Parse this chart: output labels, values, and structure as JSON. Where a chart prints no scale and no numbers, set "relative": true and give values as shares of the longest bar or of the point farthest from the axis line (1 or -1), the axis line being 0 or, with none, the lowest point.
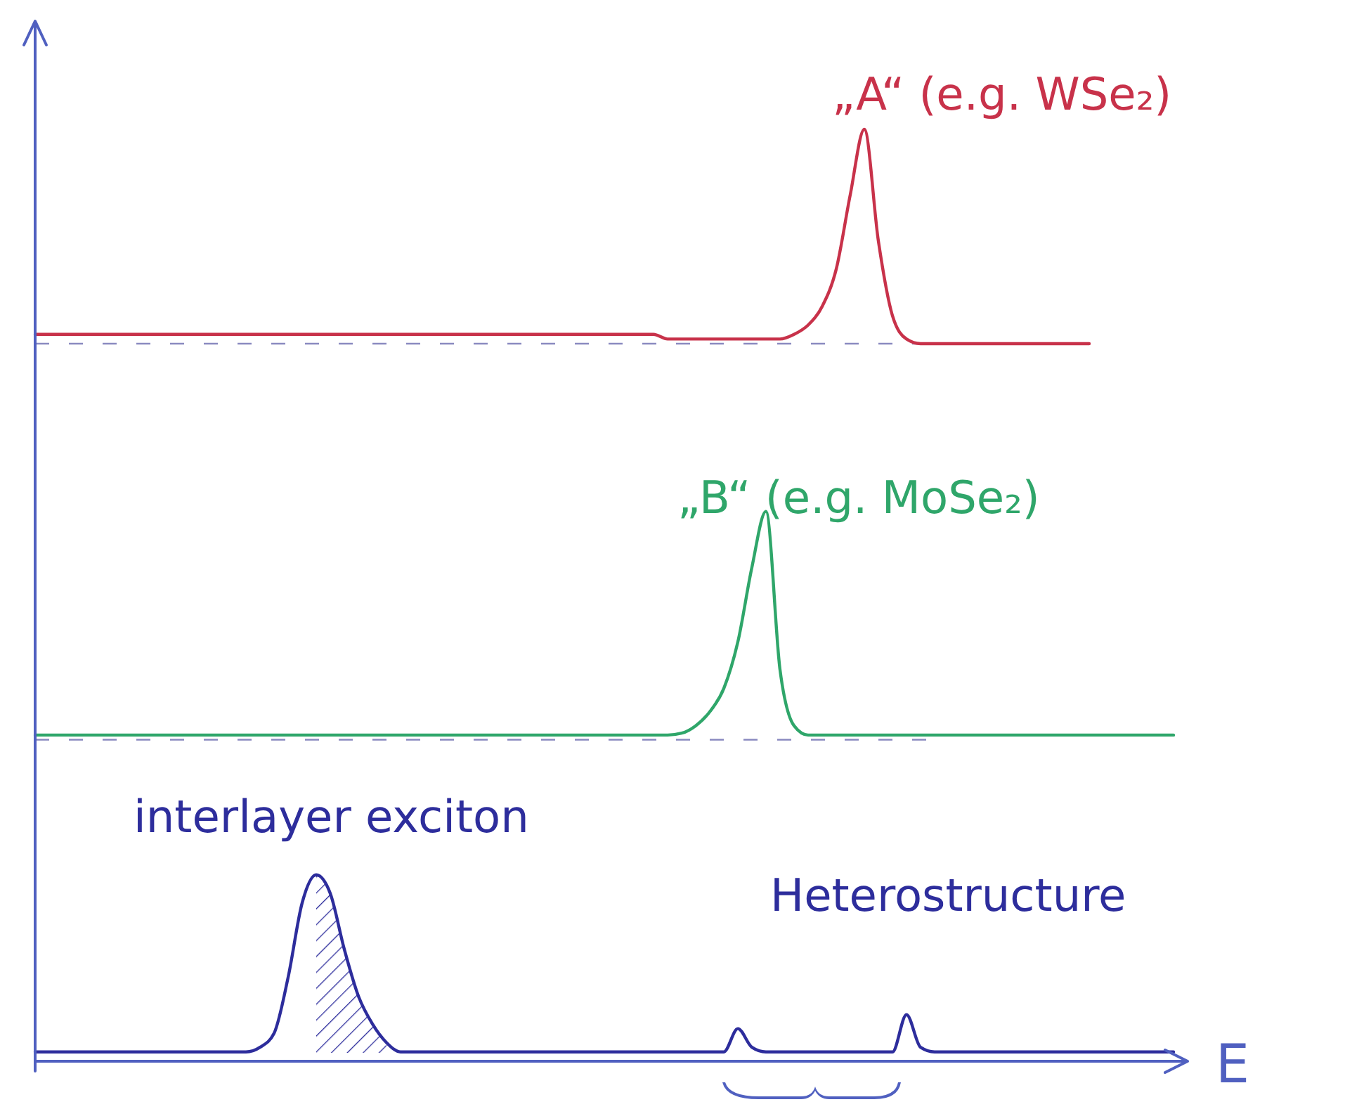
{
  "chart_data": {
    "type": "line",
    "relative": true,
    "xlabel": "E",
    "categories": [
      null,
      null,
      null,
      null,
      null,
      null,
      null,
      null,
      null,
      null,
      null,
      null,
      null,
      null,
      null,
      null,
      null,
      null,
      null,
      null,
      null,
      null,
      null,
      null,
      null,
      null,
      null,
      null,
      null,
      null,
      null,
      null,
      null,
      null,
      null,
      null,
      null,
      null,
      null,
      null,
      null,
      null,
      null,
      null,
      null,
      null,
      null,
      null,
      null,
      null,
      null,
      null,
      null,
      null,
      null,
      null,
      null,
      null,
      null,
      null,
      null,
      null,
      null,
      null,
      null,
      null,
      null,
      null,
      null,
      null,
      null,
      null,
      null,
      null,
      null,
      null,
      null,
      null,
      null,
      null,
      null,
      null,
      null
    ],
    "series": [
      {
        "color": "#c8324a",
        "values": [
          0.78,
          0.78,
          0.78,
          0.78,
          0.78,
          0.78,
          0.78,
          0.78,
          0.78,
          0.78,
          0.78,
          0.78,
          0.78,
          0.78,
          0.78,
          0.78,
          0.78,
          0.78,
          0.78,
          0.78,
          0.78,
          0.78,
          0.78,
          0.78,
          0.78,
          0.78,
          0.78,
          0.78,
          0.78,
          0.78,
          0.78,
          0.78,
          0.78,
          0.78,
          0.78,
          0.78,
          0.78,
          0.78,
          0.78,
          0.78,
          0.78,
          0.78,
          0.78,
          0.78,
          0.78,
          0.775,
          0.775,
          0.775,
          0.775,
          0.775,
          0.775,
          0.775,
          0.775,
          0.775,
          0.78,
          0.79,
          0.81,
          0.85,
          0.93,
          1,
          0.88,
          0.8,
          0.775,
          0.77,
          0.77,
          0.77,
          0.77,
          0.77,
          0.77,
          0.77,
          0.77,
          0.77,
          0.77,
          0.77,
          0.77,
          0.77,
          null,
          null,
          null,
          null,
          null,
          null,
          null
        ]
      },
      {
        "color": "#2fa66a",
        "values": [
          0.35,
          0.35,
          0.35,
          0.35,
          0.35,
          0.35,
          0.35,
          0.35,
          0.35,
          0.35,
          0.35,
          0.35,
          0.35,
          0.35,
          0.35,
          0.35,
          0.35,
          0.35,
          0.35,
          0.35,
          0.35,
          0.35,
          0.35,
          0.35,
          0.35,
          0.35,
          0.35,
          0.35,
          0.35,
          0.35,
          0.35,
          0.35,
          0.35,
          0.35,
          0.35,
          0.35,
          0.35,
          0.35,
          0.35,
          0.35,
          0.35,
          0.35,
          0.35,
          0.35,
          0.35,
          0.35,
          0.352,
          0.36,
          0.375,
          0.4,
          0.45,
          0.53,
          0.59,
          0.42,
          0.36,
          0.35,
          0.35,
          0.35,
          0.35,
          0.35,
          0.35,
          0.35,
          0.35,
          0.35,
          0.35,
          0.35,
          0.35,
          0.35,
          0.35,
          0.35,
          0.35,
          0.35,
          0.35,
          0.35,
          0.35,
          0.35,
          0.35,
          0.35,
          0.35,
          0.35,
          0.35,
          0.35,
          null
        ]
      },
      {
        "color": "#2d2d9c",
        "values": [
          0.01,
          0.01,
          0.01,
          0.01,
          0.01,
          0.01,
          0.01,
          0.01,
          0.01,
          0.01,
          0.01,
          0.01,
          0.01,
          0.01,
          0.01,
          0.01,
          0.015,
          0.03,
          0.09,
          0.17,
          0.2,
          0.18,
          0.12,
          0.07,
          0.04,
          0.02,
          0.01,
          0.01,
          0.01,
          0.01,
          0.01,
          0.01,
          0.01,
          0.01,
          0.01,
          0.01,
          0.01,
          0.01,
          0.01,
          0.01,
          0.01,
          0.01,
          0.01,
          0.01,
          0.01,
          0.01,
          0.01,
          0.01,
          0.01,
          0.01,
          0.035,
          0.015,
          0.01,
          0.01,
          0.01,
          0.01,
          0.01,
          0.01,
          0.01,
          0.01,
          0.01,
          0.01,
          0.05,
          0.015,
          0.01,
          0.01,
          0.01,
          0.01,
          0.01,
          0.01,
          0.01,
          0.01,
          0.01,
          0.01,
          0.01,
          0.01,
          0.01,
          0.01,
          0.01,
          0.01,
          0.01,
          0.01,
          null
        ]
      }
    ],
    "ref_lines": [
      {
        "axis": "y",
        "value": 0.77,
        "color": "#8a8ac0",
        "line_style": "dashed"
      },
      {
        "axis": "y",
        "value": 0.345,
        "color": "#8a8ac0",
        "line_style": "dashed"
      }
    ],
    "annotations": [
      "„A“ (e.g. WSe₂)",
      "„B“ (e.g. MoSe₂)",
      "interlayer exciton",
      "Heterostructure"
    ]
  }
}
